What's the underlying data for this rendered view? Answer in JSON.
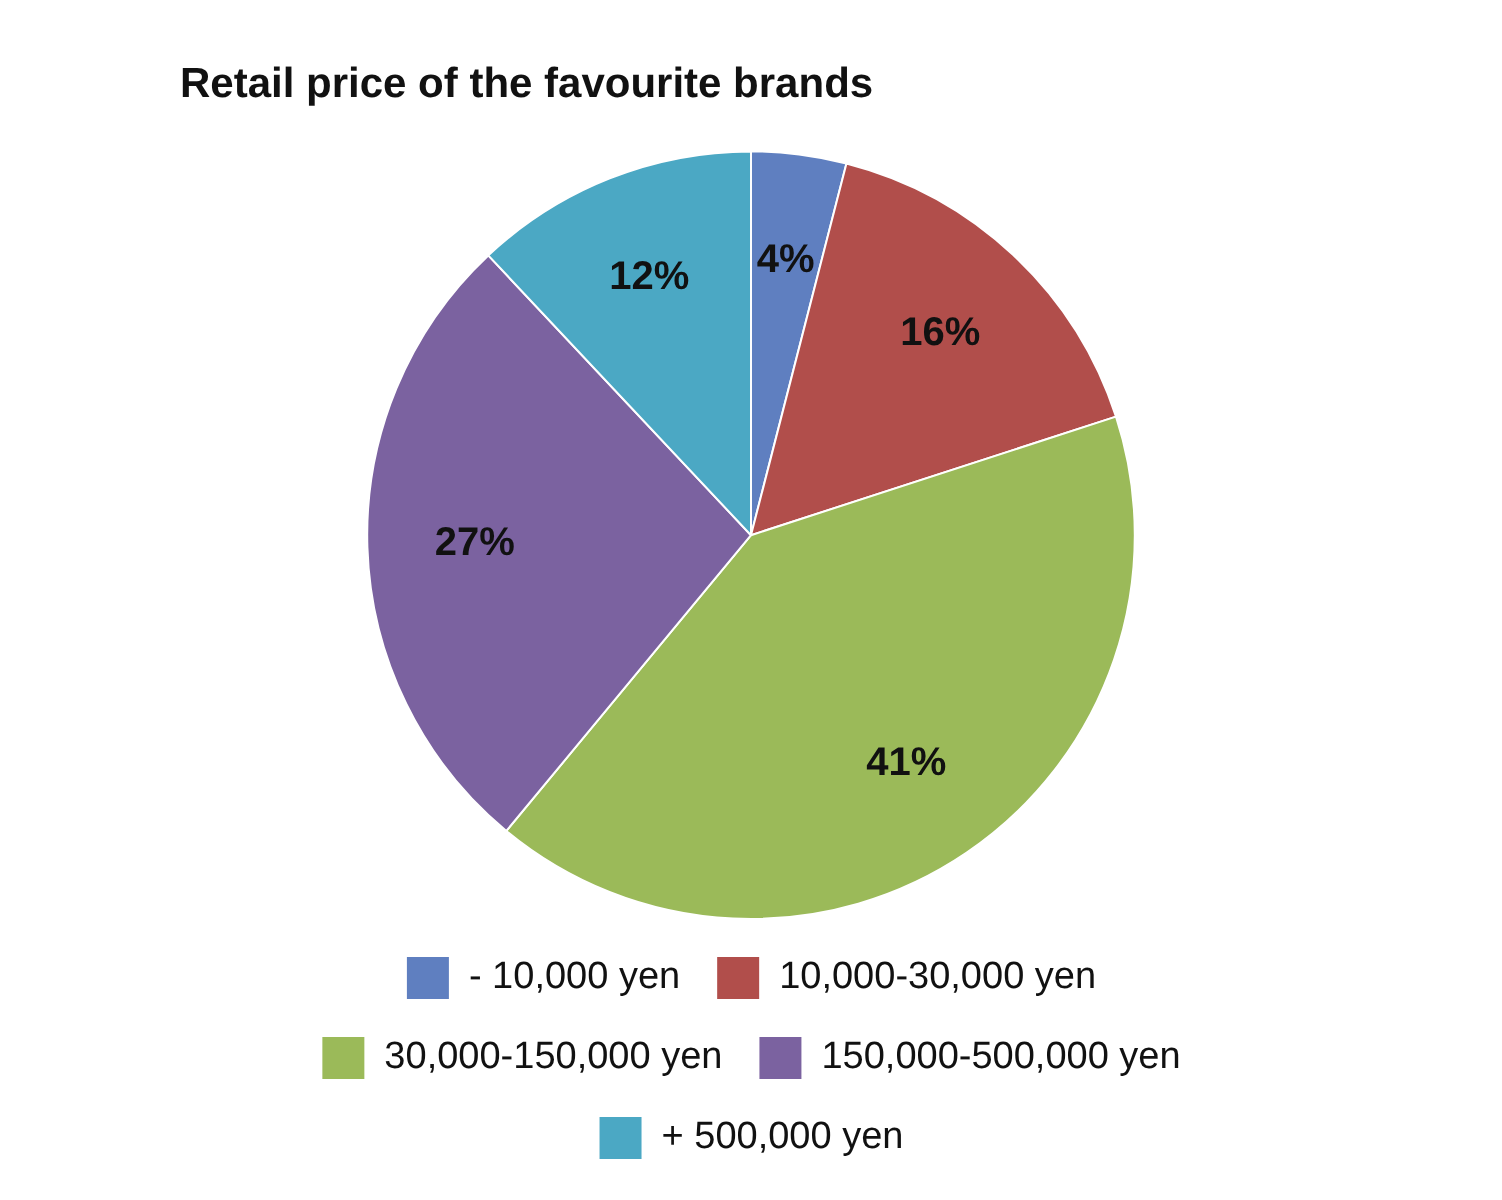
{
  "chart_data": {
    "type": "pie",
    "title": "Retail price of the favourite brands",
    "categories": [
      "- 10,000 yen",
      "10,000-30,000 yen",
      "30,000-150,000 yen",
      "150,000-500,000 yen",
      "+ 500,000 yen"
    ],
    "values": [
      4,
      16,
      41,
      27,
      12
    ],
    "value_labels": [
      "4%",
      "16%",
      "41%",
      "27%",
      "12%"
    ],
    "colors": [
      "#5f7fc0",
      "#b14e4b",
      "#9bba59",
      "#7b62a0",
      "#4ba8c4"
    ],
    "legend": "bottom"
  }
}
